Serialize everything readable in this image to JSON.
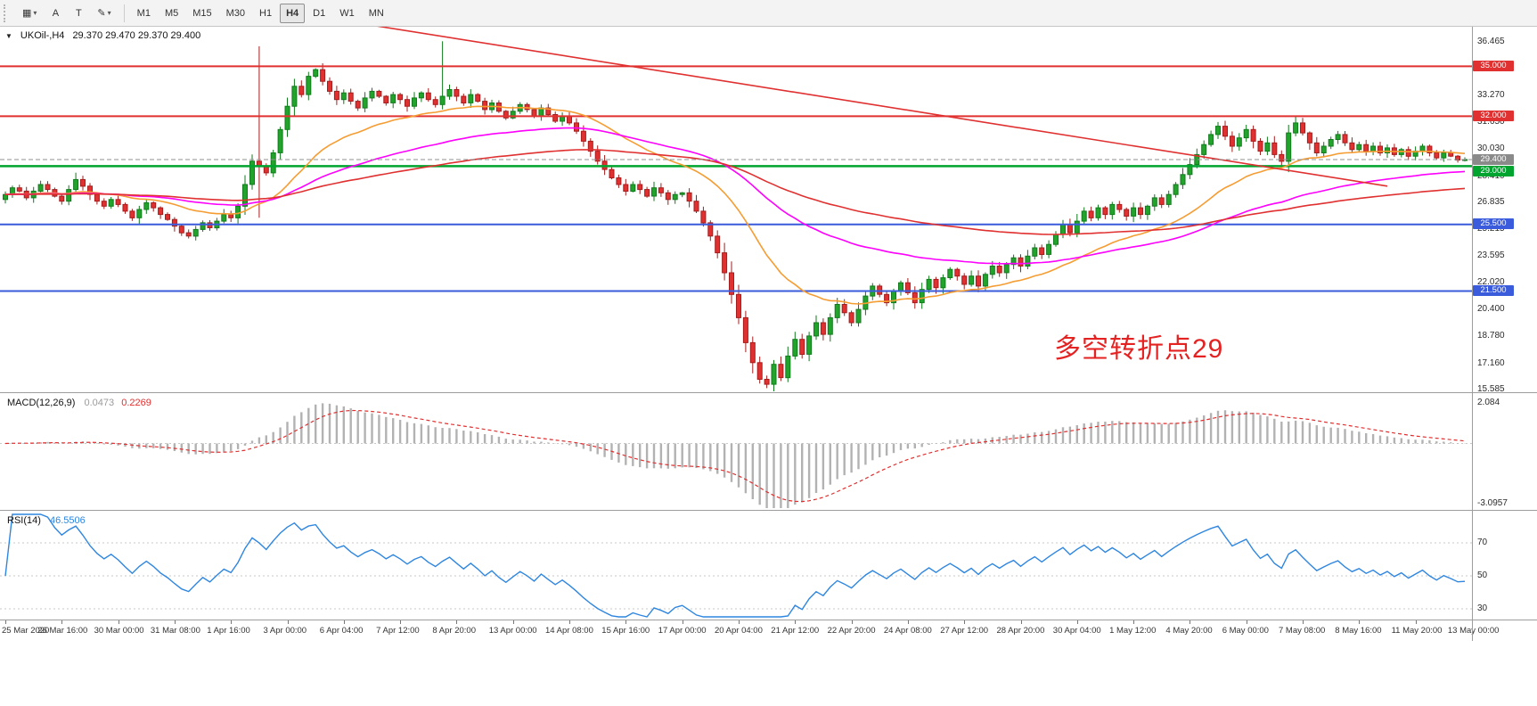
{
  "toolbar": {
    "buttons": [
      {
        "name": "chart-type-button",
        "glyph": "▦",
        "caret": "▾"
      },
      {
        "name": "cursor-a-button",
        "glyph": "A",
        "caret": ""
      },
      {
        "name": "text-tool-button",
        "glyph": "T",
        "caret": ""
      },
      {
        "name": "draw-tools-button",
        "glyph": "✎",
        "caret": "▾"
      }
    ],
    "timeframes": [
      "M1",
      "M5",
      "M15",
      "M30",
      "H1",
      "H4",
      "D1",
      "W1",
      "MN"
    ],
    "selected_timeframe": "H4"
  },
  "chart": {
    "symbol_title": "UKOil-,H4",
    "ohlc_text": "29.370 29.470 29.370 29.400",
    "collapse_icon": "▼",
    "annotation": {
      "text": "多空转折点29",
      "color": "#e42222"
    },
    "price_axis_labels": [
      "36.465",
      "33.270",
      "31.650",
      "30.030",
      "28.410",
      "26.835",
      "25.215",
      "23.595",
      "22.020",
      "20.400",
      "18.780",
      "17.160",
      "15.585"
    ],
    "levels": [
      {
        "price": 35.0,
        "label": "35.000",
        "color": "#e03030",
        "width": 2
      },
      {
        "price": 32.0,
        "label": "32.000",
        "color": "#e03030",
        "width": 2
      },
      {
        "price": 29.0,
        "label": "29.000",
        "color": "#00a42f",
        "width": 2.5
      },
      {
        "price": 25.5,
        "label": "25.500",
        "color": "#3a5bdc",
        "width": 2
      },
      {
        "price": 21.5,
        "label": "21.500",
        "color": "#3a5bdc",
        "width": 2
      }
    ],
    "current_price": {
      "price": 29.4,
      "label": "29.400",
      "color": "#8a8a8a"
    },
    "macd": {
      "label": "MACD(12,26,9)",
      "value_main": "0.0473",
      "value_signal": "0.2269",
      "axis_labels": [
        {
          "text": "2.084",
          "value": 2.084
        },
        {
          "text": "-3.0957",
          "value": -3.0957
        }
      ]
    },
    "rsi": {
      "label": "RSI(14)",
      "value": "46.5506",
      "axis_labels": [
        {
          "text": "70",
          "value": 70
        },
        {
          "text": "50",
          "value": 50
        },
        {
          "text": "30",
          "value": 30
        }
      ]
    },
    "time_axis_labels": [
      "25 Mar 2020",
      "26 Mar 16:00",
      "30 Mar 00:00",
      "31 Mar 08:00",
      "1 Apr 16:00",
      "3 Apr 00:00",
      "6 Apr 04:00",
      "7 Apr 12:00",
      "8 Apr 20:00",
      "13 Apr 00:00",
      "14 Apr 08:00",
      "15 Apr 16:00",
      "17 Apr 00:00",
      "20 Apr 04:00",
      "21 Apr 12:00",
      "22 Apr 20:00",
      "24 Apr 08:00",
      "27 Apr 12:00",
      "28 Apr 20:00",
      "30 Apr 04:00",
      "1 May 12:00",
      "4 May 20:00",
      "6 May 00:00",
      "7 May 08:00",
      "8 May 16:00",
      "11 May 20:00",
      "13 May 00:00"
    ]
  },
  "chart_data": {
    "type": "candlestick",
    "symbol": "UKOil-",
    "timeframe": "H4",
    "title": "UKOil-,H4",
    "y_axis": {
      "min": 15.585,
      "max": 36.465
    },
    "closes": [
      27.3,
      27.7,
      27.5,
      27.1,
      27.5,
      27.9,
      27.6,
      27.2,
      26.9,
      27.6,
      28.2,
      27.8,
      27.3,
      26.9,
      26.6,
      27.0,
      26.7,
      26.3,
      25.9,
      26.4,
      26.8,
      26.5,
      26.1,
      25.8,
      25.4,
      25.0,
      24.8,
      25.2,
      25.6,
      25.3,
      25.7,
      26.1,
      25.9,
      26.6,
      27.9,
      29.3,
      29.0,
      28.6,
      29.8,
      31.2,
      32.6,
      33.8,
      33.3,
      34.4,
      34.8,
      34.1,
      33.5,
      33.0,
      33.4,
      32.9,
      32.5,
      33.1,
      33.5,
      33.2,
      32.8,
      33.3,
      33.0,
      32.6,
      33.1,
      33.4,
      33.0,
      32.7,
      33.2,
      33.6,
      33.2,
      32.8,
      33.3,
      32.9,
      32.4,
      32.8,
      32.3,
      31.9,
      32.3,
      32.7,
      32.4,
      32.0,
      32.5,
      32.1,
      31.7,
      32.0,
      31.6,
      31.1,
      30.5,
      29.9,
      29.3,
      28.8,
      28.3,
      27.9,
      27.5,
      27.9,
      27.6,
      27.2,
      27.7,
      27.4,
      27.0,
      27.3,
      27.4,
      26.9,
      26.3,
      25.6,
      24.8,
      23.8,
      22.6,
      21.3,
      19.9,
      18.4,
      17.2,
      16.2,
      15.9,
      17.1,
      16.3,
      17.6,
      18.6,
      17.7,
      18.8,
      19.6,
      18.9,
      19.9,
      20.7,
      20.2,
      19.6,
      20.4,
      21.2,
      21.8,
      21.3,
      20.8,
      21.5,
      22.0,
      21.4,
      20.8,
      21.6,
      22.2,
      21.7,
      22.3,
      22.8,
      22.4,
      21.9,
      22.4,
      21.8,
      22.5,
      23.0,
      22.6,
      23.1,
      23.5,
      23.0,
      23.6,
      24.1,
      23.7,
      24.3,
      24.9,
      25.5,
      25.0,
      25.7,
      26.3,
      25.9,
      26.5,
      26.1,
      26.7,
      26.4,
      26.0,
      26.5,
      26.1,
      26.6,
      27.1,
      26.7,
      27.3,
      27.9,
      28.5,
      29.1,
      29.7,
      30.3,
      30.9,
      31.4,
      30.8,
      30.2,
      30.7,
      31.2,
      30.5,
      29.9,
      30.4,
      29.7,
      29.3,
      31.0,
      31.6,
      31.0,
      30.4,
      29.8,
      30.2,
      30.6,
      30.9,
      30.4,
      30.0,
      30.3,
      29.9,
      30.2,
      29.8,
      30.1,
      29.7,
      30.0,
      29.6,
      29.9,
      30.2,
      29.8,
      29.5,
      29.8,
      29.6,
      29.37,
      29.4
    ],
    "spikes": [
      {
        "i": 36,
        "high": 36.2,
        "low": 25.9
      },
      {
        "i": 62,
        "high": 36.5
      }
    ],
    "horizontal_levels": [
      35.0,
      32.0,
      29.0,
      25.5,
      21.5
    ],
    "current_price": 29.4,
    "last_ohlc": {
      "open": 29.37,
      "high": 29.47,
      "low": 29.37,
      "close": 29.4
    },
    "trendline": {
      "from_bar": 50,
      "from_price": 37.6,
      "to_bar": 196,
      "to_price": 27.8
    },
    "moving_averages": [
      {
        "period": 24,
        "color": "#f59d33"
      },
      {
        "period": 60,
        "color": "#ff00ff"
      },
      {
        "period": 120,
        "color": "#e03030"
      }
    ],
    "indicators": {
      "macd": {
        "fast": 12,
        "slow": 26,
        "signal": 9,
        "main": 0.0473,
        "signal_value": 0.2269,
        "axis": {
          "max": 2.084,
          "min": -3.0957
        }
      },
      "rsi": {
        "period": 14,
        "value": 46.5506,
        "levels": [
          70,
          50,
          30
        ]
      }
    }
  }
}
